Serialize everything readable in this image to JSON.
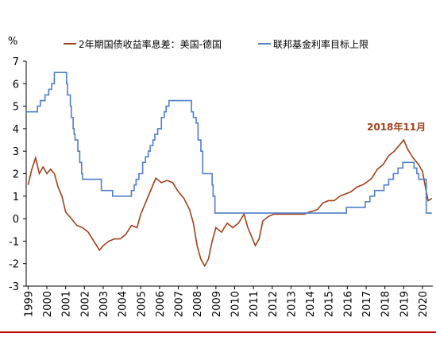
{
  "chart_data": {
    "type": "line",
    "ylabel": "%",
    "annotation": "2018年11月",
    "xlim": [
      1998.9,
      2020.55
    ],
    "ylim": [
      -3,
      7
    ],
    "yticks": [
      -3,
      -2,
      -1,
      0,
      1,
      2,
      3,
      4,
      5,
      6,
      7
    ],
    "xticks": [
      1999,
      2000,
      2001,
      2002,
      2003,
      2004,
      2005,
      2006,
      2007,
      2008,
      2009,
      2010,
      2011,
      2012,
      2013,
      2014,
      2015,
      2016,
      2017,
      2018,
      2019,
      2020
    ],
    "legend": "top",
    "series": [
      {
        "name": "2年期国债收益率息差：美国-德国",
        "color": "#a0401a",
        "step": false,
        "x": [
          1999.0,
          1999.2,
          1999.4,
          1999.6,
          1999.8,
          2000.0,
          2000.2,
          2000.4,
          2000.6,
          2000.8,
          2001.0,
          2001.3,
          2001.6,
          2001.9,
          2002.2,
          2002.5,
          2002.8,
          2003.0,
          2003.3,
          2003.6,
          2003.9,
          2004.2,
          2004.5,
          2004.8,
          2005.0,
          2005.3,
          2005.6,
          2005.8,
          2006.1,
          2006.4,
          2006.7,
          2007.0,
          2007.3,
          2007.6,
          2007.8,
          2008.0,
          2008.2,
          2008.4,
          2008.6,
          2008.8,
          2009.0,
          2009.3,
          2009.6,
          2009.9,
          2010.2,
          2010.5,
          2010.7,
          2010.9,
          2011.1,
          2011.3,
          2011.5,
          2011.8,
          2012.1,
          2012.4,
          2012.7,
          2013.0,
          2013.4,
          2013.7,
          2014.0,
          2014.4,
          2014.7,
          2015.0,
          2015.3,
          2015.6,
          2015.9,
          2016.2,
          2016.5,
          2016.8,
          2017.0,
          2017.3,
          2017.6,
          2017.9,
          2018.2,
          2018.5,
          2018.8,
          2019.0,
          2019.2,
          2019.5,
          2019.8,
          2020.0,
          2020.2,
          2020.3,
          2020.5
        ],
        "values": [
          1.5,
          2.2,
          2.7,
          2.0,
          2.3,
          2.0,
          2.2,
          2.0,
          1.4,
          1.0,
          0.3,
          0.0,
          -0.3,
          -0.4,
          -0.6,
          -1.0,
          -1.4,
          -1.2,
          -1.0,
          -0.9,
          -0.9,
          -0.7,
          -0.3,
          -0.4,
          0.2,
          0.8,
          1.4,
          1.8,
          1.6,
          1.7,
          1.6,
          1.2,
          0.9,
          0.4,
          -0.2,
          -1.2,
          -1.8,
          -2.1,
          -1.8,
          -1.0,
          -0.4,
          -0.6,
          -0.2,
          -0.4,
          -0.2,
          0.2,
          -0.4,
          -0.8,
          -1.2,
          -0.9,
          -0.1,
          0.1,
          0.2,
          0.2,
          0.2,
          0.2,
          0.2,
          0.2,
          0.3,
          0.4,
          0.7,
          0.8,
          0.8,
          1.0,
          1.1,
          1.2,
          1.4,
          1.5,
          1.6,
          1.8,
          2.2,
          2.4,
          2.8,
          3.0,
          3.3,
          3.5,
          3.1,
          2.7,
          2.4,
          2.1,
          1.2,
          0.8,
          0.9
        ]
      },
      {
        "name": "联邦基金利率目标上限",
        "color": "#4f7fc7",
        "step": true,
        "x": [
          1998.9,
          1999.5,
          1999.65,
          1999.9,
          2000.1,
          2000.25,
          2000.4,
          2001.05,
          2001.1,
          2001.25,
          2001.3,
          2001.4,
          2001.45,
          2001.5,
          2001.65,
          2001.75,
          2001.85,
          2001.9,
          2001.95,
          2002.9,
          2003.5,
          2004.5,
          2004.65,
          2004.75,
          2004.9,
          2005.1,
          2005.25,
          2005.4,
          2005.5,
          2005.65,
          2005.75,
          2005.9,
          2006.1,
          2006.25,
          2006.35,
          2006.5,
          2007.7,
          2007.8,
          2007.95,
          2008.05,
          2008.2,
          2008.3,
          2008.8,
          2008.85,
          2008.95,
          2015.95,
          2016.95,
          2017.2,
          2017.45,
          2017.95,
          2018.2,
          2018.45,
          2018.7,
          2018.95,
          2019.55,
          2019.7,
          2019.8,
          2020.2,
          2020.5
        ],
        "values": [
          4.75,
          5.0,
          5.25,
          5.5,
          5.75,
          6.0,
          6.5,
          6.0,
          5.5,
          5.0,
          4.5,
          4.0,
          3.75,
          3.5,
          3.0,
          2.5,
          2.0,
          1.75,
          1.75,
          1.25,
          1.0,
          1.25,
          1.5,
          1.75,
          2.0,
          2.5,
          2.75,
          3.0,
          3.25,
          3.5,
          3.75,
          4.0,
          4.5,
          4.75,
          5.0,
          5.25,
          4.75,
          4.5,
          4.25,
          3.5,
          3.0,
          2.0,
          1.5,
          1.0,
          0.25,
          0.5,
          0.75,
          1.0,
          1.25,
          1.5,
          1.75,
          2.0,
          2.25,
          2.5,
          2.25,
          2.0,
          1.75,
          0.25,
          0.25
        ]
      }
    ]
  }
}
